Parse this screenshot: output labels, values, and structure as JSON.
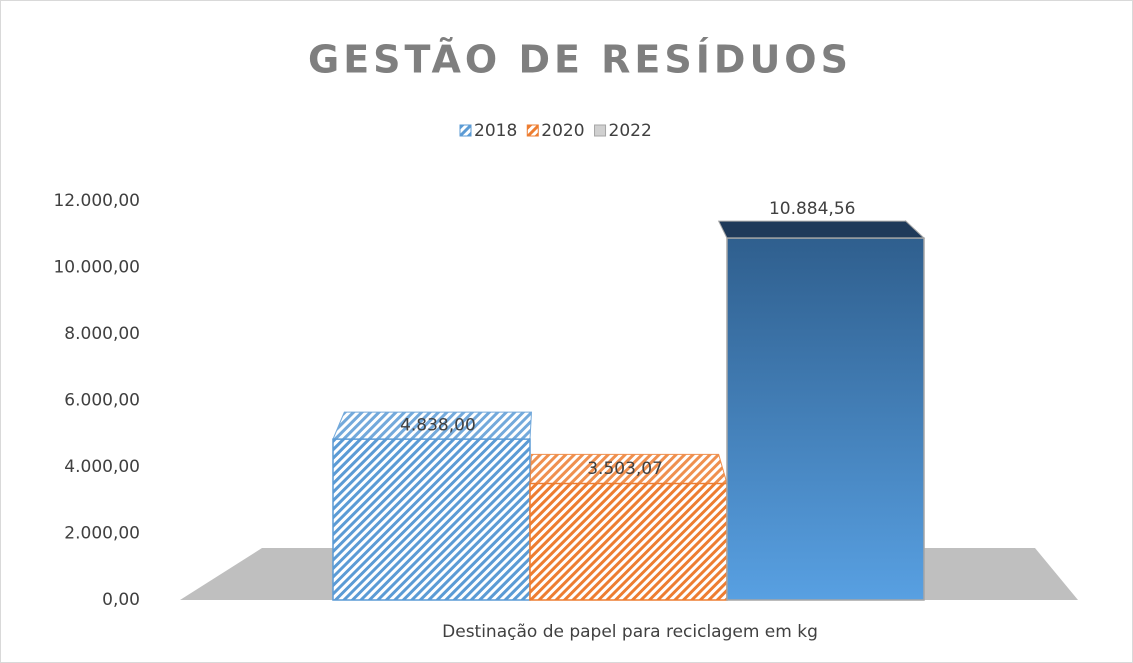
{
  "chart_data": {
    "type": "bar3d",
    "title": "GESTÃO DE RESÍDUOS",
    "categories": [
      "Destinação de papel para reciclagem em kg"
    ],
    "series": [
      {
        "name": "2018",
        "color": "#5b9bd5",
        "fill": "hatch",
        "values": [
          4838
        ],
        "value_labels": [
          "4.838,00"
        ]
      },
      {
        "name": "2020",
        "color": "#ed7d31",
        "fill": "hatch",
        "values": [
          3503.07
        ],
        "value_labels": [
          "3.503,07"
        ]
      },
      {
        "name": "2022",
        "color": "#2e75b6",
        "fill": "gradient",
        "values": [
          10884.56
        ],
        "value_labels": [
          "10.884,56"
        ]
      }
    ],
    "ylim": [
      0,
      12000
    ],
    "yticks": [
      {
        "value": 0,
        "label": "0,00"
      },
      {
        "value": 2000,
        "label": "2.000,00"
      },
      {
        "value": 4000,
        "label": "4.000,00"
      },
      {
        "value": 6000,
        "label": "6.000,00"
      },
      {
        "value": 8000,
        "label": "8.000,00"
      },
      {
        "value": 10000,
        "label": "10.000,00"
      },
      {
        "value": 12000,
        "label": "12.000,00"
      }
    ],
    "grid": false,
    "legend": "top"
  }
}
